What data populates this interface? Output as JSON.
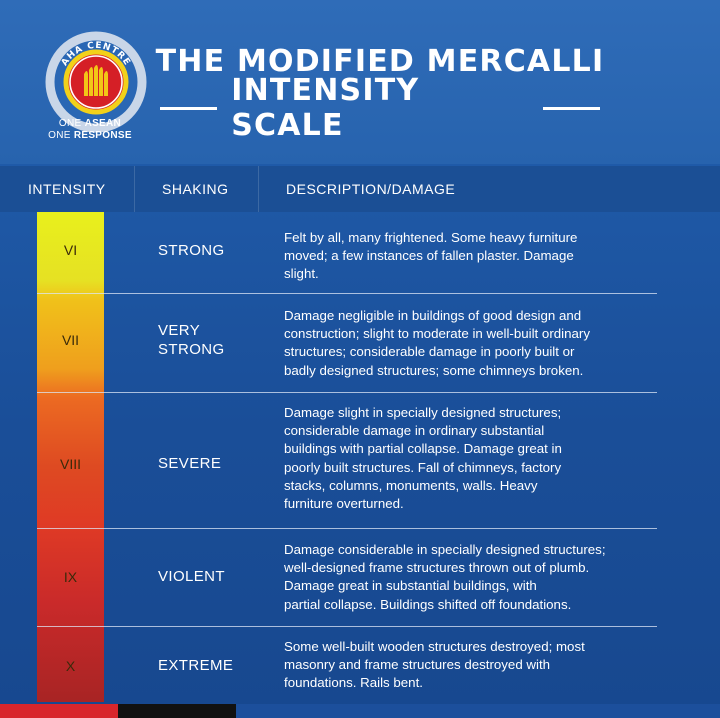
{
  "header": {
    "logo_text": "AHA CENTRE",
    "tagline_line1_prefix": "ONE ",
    "tagline_line1_bold": "ASEAN",
    "tagline_line2_prefix": "ONE ",
    "tagline_line2_bold": "RESPONSE",
    "title_line1": "THE MODIFIED MERCALLI",
    "title_line2": "INTENSITY SCALE"
  },
  "columns": {
    "intensity": "INTENSITY",
    "shaking": "SHAKING",
    "description": "DESCRIPTION/DAMAGE"
  },
  "rows": [
    {
      "intensity": "VI",
      "shaking_lines": [
        "STRONG"
      ],
      "description_lines": [
        "Felt by all, many frightened. Some heavy furniture",
        "moved; a few instances of fallen plaster. Damage",
        "slight."
      ]
    },
    {
      "intensity": "VII",
      "shaking_lines": [
        "VERY",
        "STRONG"
      ],
      "description_lines": [
        "Damage negligible in buildings of good design and",
        "construction; slight to moderate in well-built ordinary",
        "structures; considerable damage in poorly built or",
        "badly designed structures; some chimneys broken."
      ]
    },
    {
      "intensity": "VIII",
      "shaking_lines": [
        "SEVERE"
      ],
      "description_lines": [
        "Damage slight in specially designed structures;",
        "considerable damage in ordinary substantial",
        "buildings with partial collapse. Damage great in",
        "poorly built structures. Fall of chimneys, factory",
        "stacks, columns, monuments, walls. Heavy",
        "furniture overturned."
      ]
    },
    {
      "intensity": "IX",
      "shaking_lines": [
        "VIOLENT"
      ],
      "description_lines": [
        "Damage considerable in specially designed structures;",
        "well-designed frame structures thrown out of plumb.",
        "Damage great in substantial buildings, with",
        "partial collapse. Buildings shifted off foundations."
      ]
    },
    {
      "intensity": "X",
      "shaking_lines": [
        "EXTREME"
      ],
      "description_lines": [
        "Some well-built wooden structures destroyed; most",
        "masonry and frame structures destroyed with",
        "foundations. Rails bent."
      ]
    }
  ],
  "colors": {
    "background": "#1f5aa8",
    "header_band": "#1b4f95",
    "intensity_top": "#e8f01c",
    "intensity_bottom": "#a82424",
    "stripe_red": "#d8262c",
    "stripe_black": "#111111",
    "stripe_blue": "#1c4f9c"
  }
}
